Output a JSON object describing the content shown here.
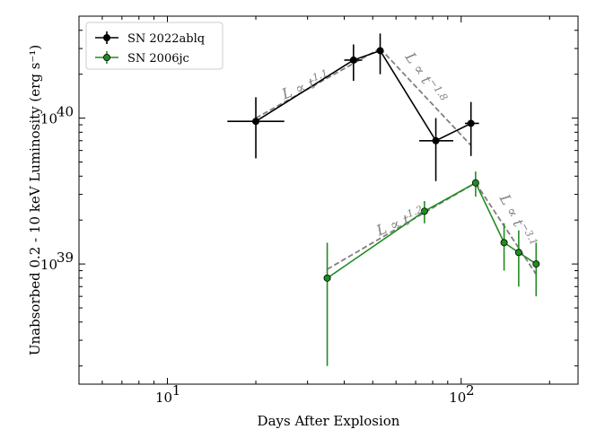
{
  "chart_data": {
    "type": "scatter",
    "title": "",
    "xlabel": "Days After Explosion",
    "ylabel": "Unabsorbed 0.2 - 10 keV Luminosity (erg s⁻¹)",
    "xscale": "log",
    "yscale": "log",
    "xlim": [
      5,
      250
    ],
    "ylim": [
      1.5e+38,
      5e+40
    ],
    "x_ticks": [
      {
        "value": 10,
        "label": "10",
        "exp": "1"
      },
      {
        "value": 100,
        "label": "10",
        "exp": "2"
      }
    ],
    "y_ticks": [
      {
        "value": 1e+39,
        "label": "10",
        "exp": "39"
      },
      {
        "value": 1e+40,
        "label": "10",
        "exp": "40"
      }
    ],
    "legend_position": "top-left",
    "series": [
      {
        "name": "SN 2022ablq",
        "color": "#000000",
        "points": [
          {
            "x": 20,
            "y": 9.5e+39,
            "xerr": [
              4,
              5
            ],
            "yerr": [
              4.2e+39,
              4.4e+39
            ]
          },
          {
            "x": 43,
            "y": 2.5e+40,
            "xerr": [
              3,
              3
            ],
            "yerr": [
              7e+39,
              7e+39
            ]
          },
          {
            "x": 53,
            "y": 2.9e+40,
            "xerr": [
              0,
              0
            ],
            "yerr": [
              9e+39,
              9e+39
            ]
          },
          {
            "x": 82,
            "y": 7e+39,
            "xerr": [
              10,
              12
            ],
            "yerr": [
              3.3e+39,
              3e+39
            ]
          },
          {
            "x": 108,
            "y": 9.2e+39,
            "xerr": [
              5,
              7
            ],
            "yerr": [
              3.7e+39,
              3.7e+39
            ]
          }
        ]
      },
      {
        "name": "SN 2006jc",
        "color": "#228B22",
        "points": [
          {
            "x": 35,
            "y": 8e+38,
            "xerr": [
              0,
              0
            ],
            "yerr": [
              6e+38,
              6e+38
            ]
          },
          {
            "x": 75,
            "y": 2.3e+39,
            "xerr": [
              0,
              0
            ],
            "yerr": [
              4e+38,
              4e+38
            ]
          },
          {
            "x": 112,
            "y": 3.6e+39,
            "xerr": [
              0,
              0
            ],
            "yerr": [
              7e+38,
              7e+38
            ]
          },
          {
            "x": 140,
            "y": 1.4e+39,
            "xerr": [
              0,
              0
            ],
            "yerr": [
              5e+38,
              5e+38
            ]
          },
          {
            "x": 157,
            "y": 1.2e+39,
            "xerr": [
              0,
              0
            ],
            "yerr": [
              5e+38,
              5e+38
            ]
          },
          {
            "x": 180,
            "y": 1e+39,
            "xerr": [
              0,
              0
            ],
            "yerr": [
              4e+38,
              4e+38
            ]
          }
        ]
      }
    ],
    "fits": [
      {
        "from": [
          20,
          1e+40
        ],
        "to": [
          53,
          3e+40
        ],
        "label_pre": "L ∝ t",
        "exponent": "1.1",
        "anchor": [
          30,
          1.55e+40
        ],
        "angle": -21
      },
      {
        "from": [
          53,
          3e+40
        ],
        "to": [
          108,
          6.5e+39
        ],
        "label_pre": "L ∝ t",
        "exponent": "−1.8",
        "anchor": [
          73,
          1.8e+40
        ],
        "angle": 56
      },
      {
        "from": [
          35,
          9.2e+38
        ],
        "to": [
          112,
          3.6e+39
        ],
        "label_pre": "L ∝ t",
        "exponent": "1.2",
        "anchor": [
          63,
          1.8e+39
        ],
        "angle": -21
      },
      {
        "from": [
          112,
          3.6e+39
        ],
        "to": [
          180,
          8.5e+38
        ],
        "label_pre": "L ∝ t",
        "exponent": "−3.1",
        "anchor": [
          150,
          1.9e+39
        ],
        "angle": 62
      }
    ]
  }
}
